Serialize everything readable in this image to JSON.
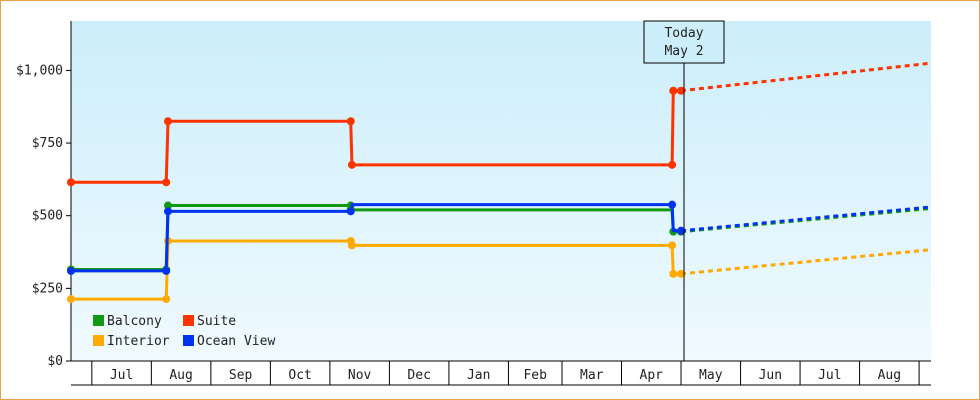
{
  "chart_data": {
    "type": "line",
    "step": true,
    "y_ticks": [
      "$0",
      "$250",
      "$500",
      "$750",
      "$1,000"
    ],
    "y_tick_values": [
      0,
      250,
      500,
      750,
      1000
    ],
    "ylim": [
      0,
      1170
    ],
    "x_range": [
      0,
      14.45
    ],
    "months": [
      {
        "label": "Jul",
        "start": 0.35,
        "end": 1.35
      },
      {
        "label": "Aug",
        "start": 1.35,
        "end": 2.35
      },
      {
        "label": "Sep",
        "start": 2.35,
        "end": 3.35
      },
      {
        "label": "Oct",
        "start": 3.35,
        "end": 4.35
      },
      {
        "label": "Nov",
        "start": 4.35,
        "end": 5.35
      },
      {
        "label": "Dec",
        "start": 5.35,
        "end": 6.35
      },
      {
        "label": "Jan",
        "start": 6.35,
        "end": 7.35
      },
      {
        "label": "Feb",
        "start": 7.35,
        "end": 8.25
      },
      {
        "label": "Mar",
        "start": 8.25,
        "end": 9.25
      },
      {
        "label": "Apr",
        "start": 9.25,
        "end": 10.25
      },
      {
        "label": "May",
        "start": 10.25,
        "end": 11.25
      },
      {
        "label": "Jun",
        "start": 11.25,
        "end": 12.25
      },
      {
        "label": "Jul",
        "start": 12.25,
        "end": 13.25
      },
      {
        "label": "Aug",
        "start": 13.25,
        "end": 14.25
      }
    ],
    "today": {
      "line1": "Today",
      "line2": "May 2",
      "x": 10.3
    },
    "series": [
      {
        "name": "Balcony",
        "color": "#119911",
        "points": [
          [
            0,
            315
          ],
          [
            1.6,
            315
          ],
          [
            1.63,
            535
          ],
          [
            4.7,
            535
          ],
          [
            4.7,
            520
          ],
          [
            10.1,
            520
          ],
          [
            10.12,
            445
          ],
          [
            10.25,
            445
          ]
        ],
        "markers": [
          [
            0,
            315
          ],
          [
            1.6,
            315
          ],
          [
            1.63,
            535
          ],
          [
            4.7,
            535
          ],
          [
            4.7,
            520
          ],
          [
            10.12,
            445
          ],
          [
            10.25,
            445
          ]
        ],
        "forecast": [
          [
            10.25,
            445
          ],
          [
            14.45,
            525
          ]
        ]
      },
      {
        "name": "Suite",
        "color": "#ff3300",
        "points": [
          [
            0,
            615
          ],
          [
            1.6,
            615
          ],
          [
            1.63,
            825
          ],
          [
            4.7,
            825
          ],
          [
            4.72,
            675
          ],
          [
            10.1,
            675
          ],
          [
            10.12,
            930
          ],
          [
            10.25,
            930
          ]
        ],
        "markers": [
          [
            0,
            615
          ],
          [
            1.6,
            615
          ],
          [
            1.63,
            825
          ],
          [
            4.7,
            825
          ],
          [
            4.72,
            675
          ],
          [
            10.1,
            675
          ],
          [
            10.12,
            930
          ],
          [
            10.25,
            930
          ]
        ],
        "forecast": [
          [
            10.25,
            930
          ],
          [
            14.45,
            1025
          ]
        ]
      },
      {
        "name": "Interior",
        "color": "#ffaa00",
        "points": [
          [
            0,
            213
          ],
          [
            1.6,
            213
          ],
          [
            1.63,
            413
          ],
          [
            4.7,
            413
          ],
          [
            4.72,
            398
          ],
          [
            10.1,
            398
          ],
          [
            10.12,
            300
          ],
          [
            10.25,
            300
          ]
        ],
        "markers": [
          [
            0,
            213
          ],
          [
            1.6,
            213
          ],
          [
            1.63,
            413
          ],
          [
            4.7,
            413
          ],
          [
            4.72,
            398
          ],
          [
            10.1,
            398
          ],
          [
            10.12,
            300
          ],
          [
            10.25,
            300
          ]
        ],
        "forecast": [
          [
            10.25,
            300
          ],
          [
            14.45,
            383
          ]
        ]
      },
      {
        "name": "Ocean View",
        "color": "#0033ee",
        "points": [
          [
            0,
            310
          ],
          [
            1.6,
            310
          ],
          [
            1.63,
            515
          ],
          [
            4.7,
            515
          ],
          [
            4.72,
            538
          ],
          [
            10.1,
            538
          ],
          [
            10.12,
            448
          ],
          [
            10.25,
            448
          ]
        ],
        "markers": [
          [
            0,
            310
          ],
          [
            1.6,
            310
          ],
          [
            1.63,
            515
          ],
          [
            4.7,
            515
          ],
          [
            10.1,
            538
          ],
          [
            10.25,
            448
          ]
        ],
        "forecast": [
          [
            10.25,
            448
          ],
          [
            14.45,
            530
          ]
        ]
      }
    ],
    "legend": [
      {
        "label": "Balcony",
        "color": "#119911"
      },
      {
        "label": "Suite",
        "color": "#ff3300"
      },
      {
        "label": "Interior",
        "color": "#ffaa00"
      },
      {
        "label": "Ocean View",
        "color": "#0033ee"
      }
    ],
    "legend_position": "bottom-left",
    "colors": {
      "plot_top": "#cceefa",
      "plot_bottom": "#f0faff",
      "frame": "#e8a44a"
    }
  }
}
